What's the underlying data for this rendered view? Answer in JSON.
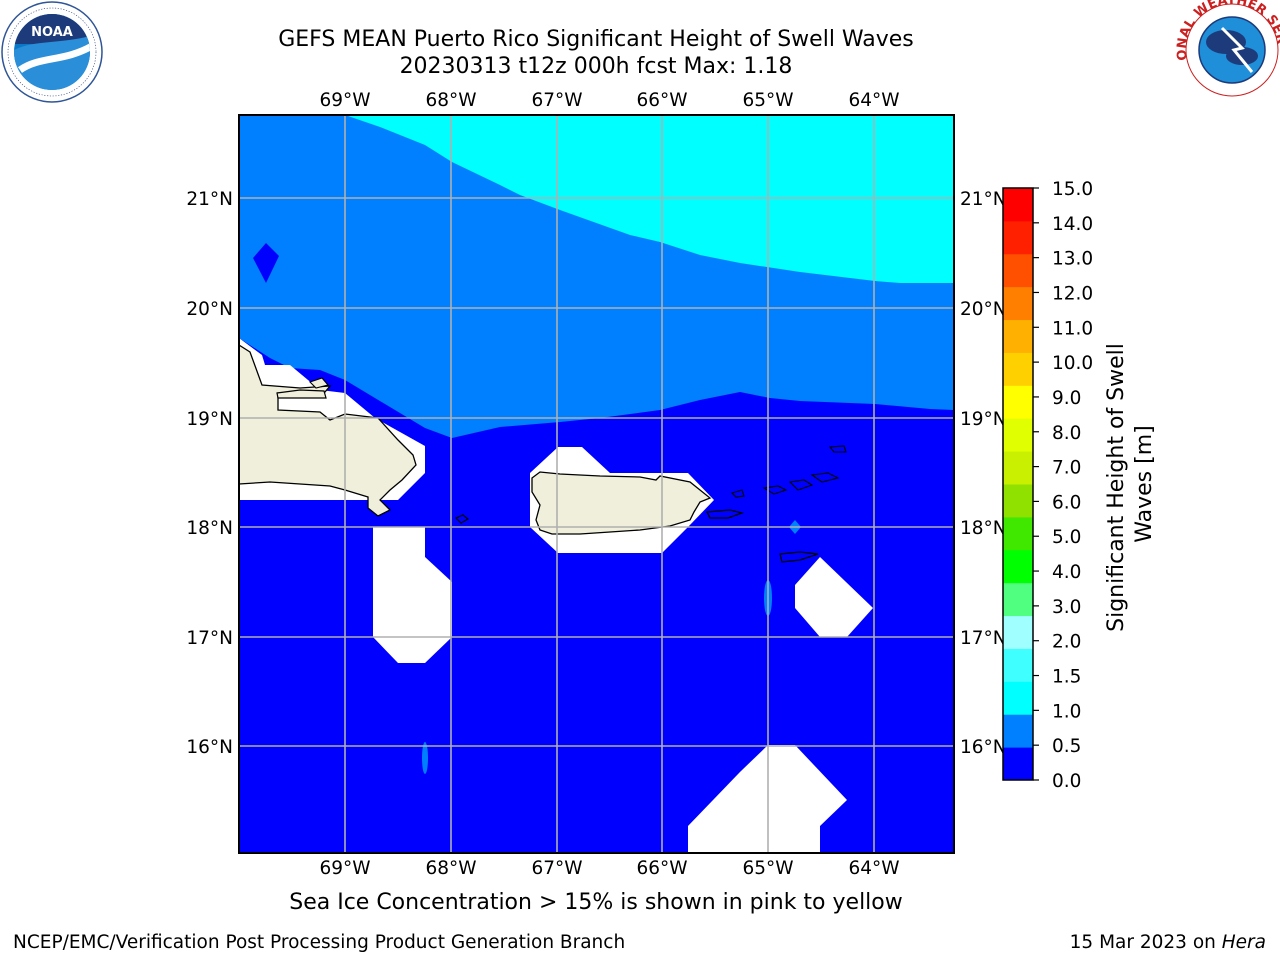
{
  "header": {
    "title_line1": "GEFS MEAN Puerto Rico Significant Height of Swell Waves",
    "title_line2": "20230313 t12z 000h fcst   Max: 1.18"
  },
  "logos": {
    "left": {
      "icon": "noaa-logo-icon",
      "text": "NOAA",
      "ring_text": "NATIONAL OCEANIC AND ATMOSPHERIC ADMINISTRATION · U.S. DEPARTMENT OF COMMERCE"
    },
    "right": {
      "icon": "nws-logo-icon",
      "ring_text": "NATIONAL WEATHER SERVICE"
    }
  },
  "map": {
    "lon_labels": [
      "69°W",
      "68°W",
      "67°W",
      "66°W",
      "65°W",
      "64°W"
    ],
    "lat_labels": [
      "21°N",
      "20°N",
      "19°N",
      "18°N",
      "17°N",
      "16°N"
    ],
    "colors": {
      "band_0_05": "#0000ff",
      "band_05_1": "#0080ff",
      "band_1_15": "#00ffff",
      "land": "#efefdb",
      "masked": "#ffffff",
      "grid": "#b0b0b0"
    }
  },
  "colorbar": {
    "label": "Significant Height of Swell Waves [m]",
    "label_line1": "Significant Height of Swell",
    "label_line2": "Waves [m]",
    "ticks": [
      "15.0",
      "14.0",
      "13.0",
      "12.0",
      "11.0",
      "10.0",
      "9.0",
      "8.0",
      "7.0",
      "6.0",
      "5.0",
      "4.0",
      "3.0",
      "2.0",
      "1.5",
      "1.0",
      "0.5",
      "0.0"
    ],
    "colors_bottom_to_top": [
      "#0000ff",
      "#0080ff",
      "#00ffff",
      "#40ffff",
      "#a0ffff",
      "#50ff80",
      "#00ff00",
      "#40e800",
      "#90e000",
      "#c8f000",
      "#e0ff00",
      "#ffff00",
      "#ffd000",
      "#ffb000",
      "#ff8000",
      "#ff5000",
      "#ff2000",
      "#ff0000"
    ]
  },
  "footer": {
    "note": "Sea Ice Concentration > 15% is shown in pink to yellow",
    "credit_left": "NCEP/EMC/Verification Post Processing Product Generation Branch",
    "credit_right_date": "15 Mar 2023 on ",
    "credit_right_machine": "Hera"
  }
}
